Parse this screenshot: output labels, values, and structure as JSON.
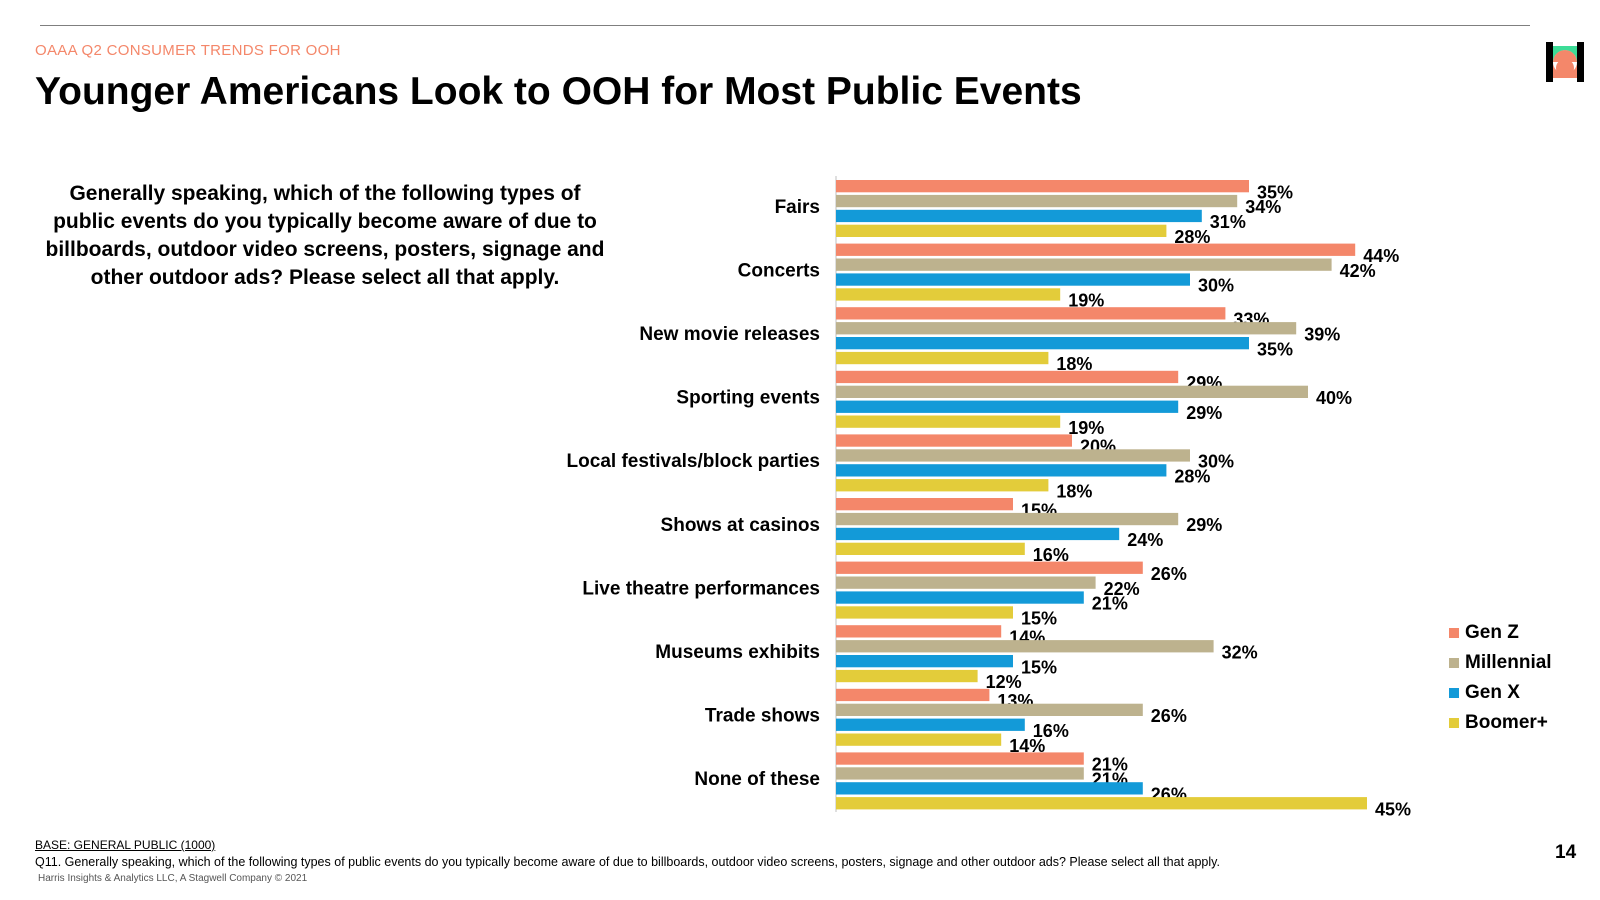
{
  "header": {
    "kicker": "OAAA Q2 CONSUMER TRENDS FOR OOH",
    "title": "Younger Americans Look to OOH for Most Public Events"
  },
  "question": "Generally speaking, which of the following types of public events do you typically become aware of due to billboards, outdoor video screens, posters, signage and other outdoor ads? Please select all that apply.",
  "chart_data": {
    "type": "bar",
    "orientation": "horizontal",
    "categories": [
      "Fairs",
      "Concerts",
      "New movie releases",
      "Sporting events",
      "Local festivals/block parties",
      "Shows at casinos",
      "Live theatre performances",
      "Museums exhibits",
      "Trade shows",
      "None of these"
    ],
    "series": [
      {
        "name": "Gen Z",
        "color": "#f4876a",
        "values": [
          35,
          44,
          33,
          29,
          20,
          15,
          26,
          14,
          13,
          21
        ]
      },
      {
        "name": "Millennial",
        "color": "#bdb28e",
        "values": [
          34,
          42,
          39,
          40,
          30,
          29,
          22,
          32,
          26,
          21
        ]
      },
      {
        "name": "Gen X",
        "color": "#139ad8",
        "values": [
          31,
          30,
          35,
          29,
          28,
          24,
          21,
          15,
          16,
          26
        ]
      },
      {
        "name": "Boomer+",
        "color": "#e3cc3a",
        "values": [
          28,
          19,
          18,
          19,
          18,
          16,
          15,
          12,
          14,
          45
        ]
      }
    ],
    "value_suffix": "%",
    "xlim": [
      0,
      45
    ],
    "grid": false,
    "legend_position": "right"
  },
  "footer": {
    "base": "BASE: GENERAL PUBLIC (1000)",
    "question_note": "Q11. Generally speaking, which of the following types of public events do you typically become aware of due to billboards, outdoor video screens, posters, signage and other outdoor ads? Please select all that apply.",
    "copyright": "Harris Insights & Analytics LLC, A Stagwell Company © 2021",
    "page_number": "14"
  },
  "logo": {
    "name": "harris-logo",
    "colors": [
      "#000000",
      "#3ddc97",
      "#f4876a"
    ]
  }
}
